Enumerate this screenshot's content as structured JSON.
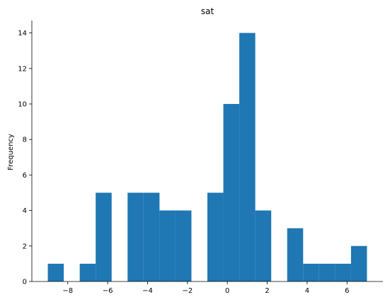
{
  "chart_data": {
    "type": "bar",
    "title": "sat",
    "xlabel": "",
    "ylabel": "Frequency",
    "xlim": [
      -9.8,
      7.8
    ],
    "ylim": [
      0,
      14.7
    ],
    "xticks": [
      -8,
      -6,
      -4,
      -2,
      0,
      2,
      4,
      6
    ],
    "xtick_labels": [
      "−8",
      "−6",
      "−4",
      "−2",
      "0",
      "2",
      "4",
      "6"
    ],
    "yticks": [
      0,
      2,
      4,
      6,
      8,
      10,
      12,
      14
    ],
    "ytick_labels": [
      "0",
      "2",
      "4",
      "6",
      "8",
      "10",
      "12",
      "14"
    ],
    "bar_color": "#1f77b4",
    "grid": false,
    "bins": [
      {
        "x0": -9.0,
        "x1": -8.2,
        "count": 1
      },
      {
        "x0": -8.2,
        "x1": -7.4,
        "count": 0
      },
      {
        "x0": -7.4,
        "x1": -6.6,
        "count": 1
      },
      {
        "x0": -6.6,
        "x1": -5.8,
        "count": 5
      },
      {
        "x0": -5.8,
        "x1": -5.0,
        "count": 0
      },
      {
        "x0": -5.0,
        "x1": -4.2,
        "count": 5
      },
      {
        "x0": -4.2,
        "x1": -3.4,
        "count": 5
      },
      {
        "x0": -3.4,
        "x1": -2.6,
        "count": 4
      },
      {
        "x0": -2.6,
        "x1": -1.8,
        "count": 4
      },
      {
        "x0": -1.8,
        "x1": -1.0,
        "count": 0
      },
      {
        "x0": -1.0,
        "x1": -0.2,
        "count": 5
      },
      {
        "x0": -0.2,
        "x1": 0.6,
        "count": 10
      },
      {
        "x0": 0.6,
        "x1": 1.4,
        "count": 14
      },
      {
        "x0": 1.4,
        "x1": 2.2,
        "count": 4
      },
      {
        "x0": 2.2,
        "x1": 3.0,
        "count": 0
      },
      {
        "x0": 3.0,
        "x1": 3.8,
        "count": 3
      },
      {
        "x0": 3.8,
        "x1": 4.6,
        "count": 1
      },
      {
        "x0": 4.6,
        "x1": 5.4,
        "count": 1
      },
      {
        "x0": 5.4,
        "x1": 6.2,
        "count": 1
      },
      {
        "x0": 6.2,
        "x1": 7.0,
        "count": 2
      }
    ]
  }
}
